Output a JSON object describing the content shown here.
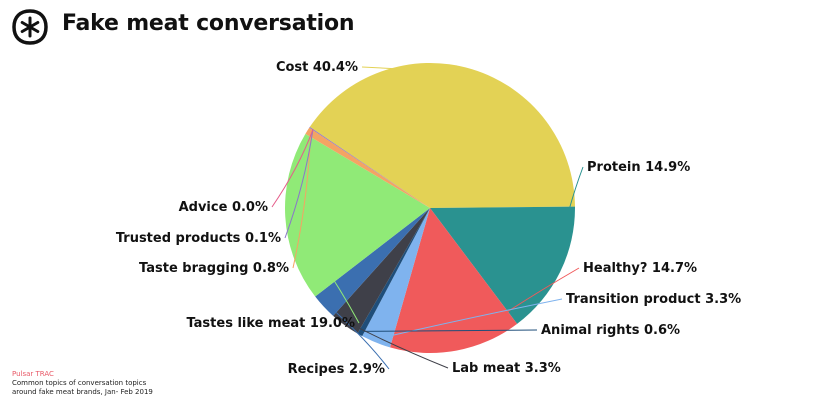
{
  "header": {
    "title": "Fake meat conversation",
    "logo_icon": "asterisk-circle-icon"
  },
  "footer": {
    "brand": "Pulsar TRAC",
    "note_line1": "Common topics of conversation topics",
    "note_line2": "around fake meat brands, Jan- Feb 2019"
  },
  "chart_data": {
    "type": "pie",
    "title": "Fake meat conversation",
    "slices": [
      {
        "label": "Cost",
        "value": 40.4,
        "display": "Cost 40.4%",
        "color": "#e3d255"
      },
      {
        "label": "Protein",
        "value": 14.9,
        "display": "Protein 14.9%",
        "color": "#2a9290"
      },
      {
        "label": "Healthy?",
        "value": 14.7,
        "display": "Healthy? 14.7%",
        "color": "#f05a5b"
      },
      {
        "label": "Transition product",
        "value": 3.3,
        "display": "Transition product 3.3%",
        "color": "#7fb3ee"
      },
      {
        "label": "Animal rights",
        "value": 0.6,
        "display": "Animal rights 0.6%",
        "color": "#1f4e7a"
      },
      {
        "label": "Lab meat",
        "value": 3.3,
        "display": "Lab meat 3.3%",
        "color": "#3f4049"
      },
      {
        "label": "Recipes",
        "value": 2.9,
        "display": "Recipes 2.9%",
        "color": "#3b6fb0"
      },
      {
        "label": "Tastes like meat",
        "value": 19.0,
        "display": "Tastes like meat 19.0%",
        "color": "#90ea77"
      },
      {
        "label": "Taste bragging",
        "value": 0.8,
        "display": "Taste bragging 0.8%",
        "color": "#f4a463"
      },
      {
        "label": "Trusted products",
        "value": 0.1,
        "display": "Trusted products 0.1%",
        "color": "#8a78c9"
      },
      {
        "label": "Advice",
        "value": 0.0,
        "display": "Advice 0.0%",
        "color": "#e55d8a"
      }
    ]
  }
}
